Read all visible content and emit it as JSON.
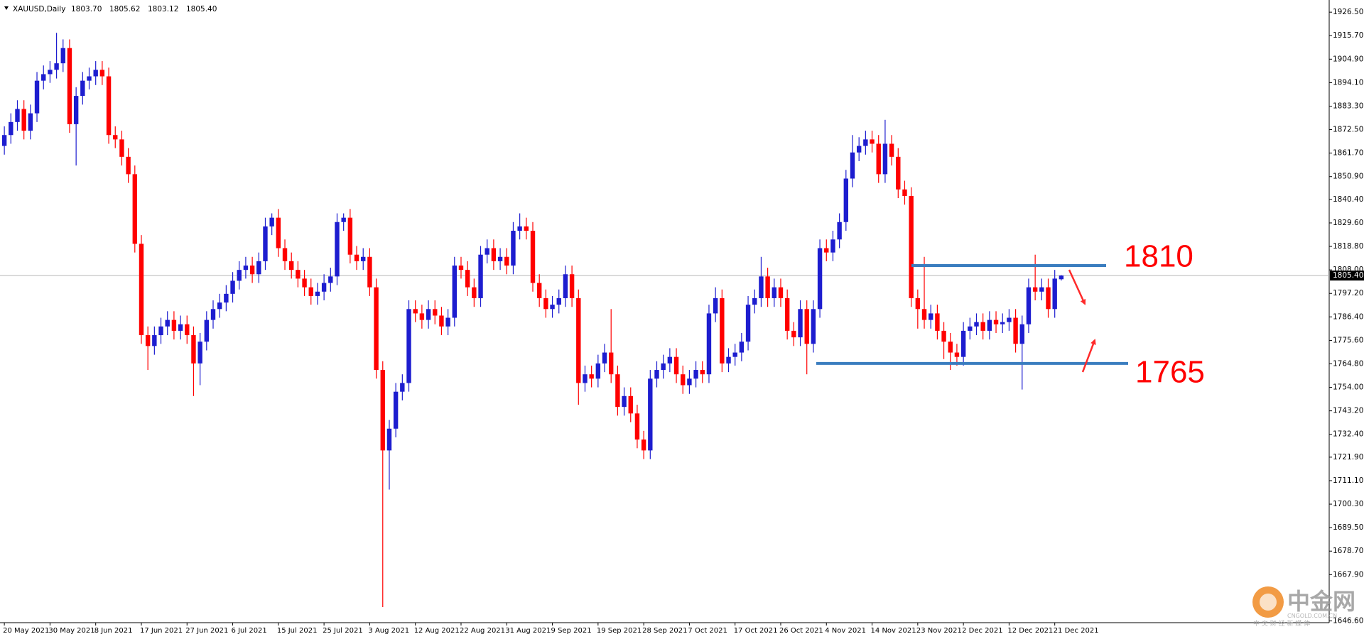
{
  "chart_data": {
    "type": "candlestick",
    "title": "XAUUSD,Daily",
    "header_prices": [
      {
        "value": 1803.7,
        "label": "1803.70"
      },
      {
        "value": 1805.62,
        "label": "1805.62"
      },
      {
        "value": 1803.12,
        "label": "1803.12"
      },
      {
        "value": 1805.4,
        "label": "1805.40"
      }
    ],
    "categories": [
      "20 May 2021",
      null,
      null,
      null,
      null,
      null,
      null,
      "30 May 2021",
      null,
      null,
      null,
      null,
      null,
      null,
      "8 Jun 2021",
      null,
      null,
      null,
      null,
      null,
      null,
      "17 Jun 2021",
      null,
      null,
      null,
      null,
      null,
      null,
      "27 Jun 2021",
      null,
      null,
      null,
      null,
      null,
      null,
      "6 Jul 2021",
      null,
      null,
      null,
      null,
      null,
      null,
      "15 Jul 2021",
      null,
      null,
      null,
      null,
      null,
      null,
      "25 Jul 2021",
      null,
      null,
      null,
      null,
      null,
      null,
      "3 Aug 2021",
      null,
      null,
      null,
      null,
      null,
      null,
      "12 Aug 2021",
      null,
      null,
      null,
      null,
      null,
      null,
      "22 Aug 2021",
      null,
      null,
      null,
      null,
      null,
      null,
      "31 Aug 2021",
      null,
      null,
      null,
      null,
      null,
      null,
      "9 Sep 2021",
      null,
      null,
      null,
      null,
      null,
      null,
      "19 Sep 2021",
      null,
      null,
      null,
      null,
      null,
      null,
      "28 Sep 2021",
      null,
      null,
      null,
      null,
      null,
      null,
      "7 Oct 2021",
      null,
      null,
      null,
      null,
      null,
      null,
      "17 Oct 2021",
      null,
      null,
      null,
      null,
      null,
      null,
      "26 Oct 2021",
      null,
      null,
      null,
      null,
      null,
      null,
      "4 Nov 2021",
      null,
      null,
      null,
      null,
      null,
      null,
      "14 Nov 2021",
      null,
      null,
      null,
      null,
      null,
      null,
      "23 Nov 2021",
      null,
      null,
      null,
      null,
      null,
      null,
      "2 Dec 2021",
      null,
      null,
      null,
      null,
      null,
      null,
      "12 Dec 2021",
      null,
      null,
      null,
      null,
      null,
      null,
      "21 Dec 2021",
      null
    ],
    "open": [
      1865,
      1870,
      1876,
      1882,
      1872,
      1880,
      1895,
      1898,
      1900,
      1903,
      1910,
      1875,
      1888,
      1895,
      1897,
      1900,
      1897,
      1870,
      1868,
      1860,
      1852,
      1820,
      1778,
      1773,
      1778,
      1782,
      1785,
      1780,
      1783,
      1778,
      1765,
      1775,
      1785,
      1790,
      1793,
      1797,
      1803,
      1808,
      1810,
      1806,
      1812,
      1828,
      1832,
      1818,
      1812,
      1808,
      1804,
      1800,
      1796,
      1798,
      1802,
      1805,
      1830,
      1832,
      1815,
      1812,
      1814,
      1800,
      1762,
      1725,
      1735,
      1752,
      1756,
      1790,
      1788,
      1785,
      1790,
      1787,
      1782,
      1786,
      1810,
      1808,
      1800,
      1795,
      1815,
      1818,
      1812,
      1814,
      1810,
      1826,
      1828,
      1826,
      1802,
      1795,
      1790,
      1792,
      1795,
      1806,
      1795,
      1756,
      1760,
      1758,
      1765,
      1770,
      1760,
      1745,
      1750,
      1742,
      1730,
      1725,
      1758,
      1762,
      1765,
      1768,
      1760,
      1755,
      1758,
      1762,
      1760,
      1788,
      1795,
      1765,
      1768,
      1770,
      1775,
      1792,
      1795,
      1805,
      1795,
      1800,
      1795,
      1780,
      1777,
      1790,
      1774,
      1790,
      1818,
      1816,
      1822,
      1830,
      1850,
      1862,
      1865,
      1868,
      1866,
      1852,
      1866,
      1860,
      1845,
      1842,
      1795,
      1790,
      1785,
      1788,
      1780,
      1775,
      1770,
      1768,
      1780,
      1782,
      1784,
      1780,
      1785,
      1783,
      1784,
      1786,
      1774,
      1783,
      1800,
      1798,
      1800,
      1790,
      1803.7
    ],
    "high": [
      1874,
      1880,
      1886,
      1886,
      1884,
      1899,
      1902,
      1904,
      1917,
      1914,
      1914,
      1892,
      1899,
      1901,
      1904,
      1904,
      1901,
      1874,
      1872,
      1864,
      1856,
      1824,
      1782,
      1782,
      1786,
      1789,
      1789,
      1787,
      1787,
      1782,
      1779,
      1789,
      1794,
      1797,
      1801,
      1807,
      1812,
      1814,
      1814,
      1816,
      1832,
      1834,
      1836,
      1822,
      1816,
      1812,
      1808,
      1804,
      1802,
      1806,
      1809,
      1834,
      1834,
      1836,
      1819,
      1818,
      1818,
      1804,
      1766,
      1739,
      1756,
      1760,
      1794,
      1794,
      1792,
      1794,
      1794,
      1791,
      1790,
      1814,
      1814,
      1812,
      1804,
      1819,
      1822,
      1822,
      1818,
      1818,
      1830,
      1834,
      1832,
      1830,
      1806,
      1799,
      1796,
      1799,
      1810,
      1810,
      1799,
      1764,
      1764,
      1769,
      1774,
      1790,
      1764,
      1754,
      1754,
      1746,
      1734,
      1762,
      1766,
      1769,
      1772,
      1772,
      1764,
      1762,
      1766,
      1766,
      1792,
      1800,
      1799,
      1772,
      1774,
      1779,
      1796,
      1799,
      1814,
      1809,
      1804,
      1804,
      1799,
      1784,
      1794,
      1794,
      1794,
      1822,
      1822,
      1826,
      1834,
      1854,
      1870,
      1869,
      1872,
      1872,
      1870,
      1877,
      1870,
      1864,
      1849,
      1846,
      1799,
      1814,
      1792,
      1792,
      1784,
      1779,
      1774,
      1784,
      1786,
      1788,
      1788,
      1789,
      1789,
      1788,
      1790,
      1790,
      1787,
      1804,
      1815,
      1804,
      1804,
      1808,
      1805.62
    ],
    "low": [
      1861,
      1866,
      1872,
      1868,
      1868,
      1876,
      1891,
      1894,
      1896,
      1899,
      1871,
      1856,
      1884,
      1891,
      1893,
      1893,
      1866,
      1864,
      1856,
      1848,
      1816,
      1774,
      1762,
      1769,
      1774,
      1778,
      1776,
      1776,
      1774,
      1750,
      1755,
      1771,
      1781,
      1786,
      1789,
      1793,
      1799,
      1804,
      1802,
      1802,
      1808,
      1824,
      1814,
      1808,
      1804,
      1800,
      1796,
      1792,
      1792,
      1794,
      1798,
      1801,
      1826,
      1811,
      1808,
      1808,
      1796,
      1758,
      1653,
      1707,
      1731,
      1748,
      1752,
      1784,
      1781,
      1781,
      1783,
      1778,
      1778,
      1782,
      1804,
      1796,
      1791,
      1791,
      1811,
      1808,
      1808,
      1806,
      1806,
      1822,
      1822,
      1798,
      1791,
      1786,
      1786,
      1788,
      1791,
      1791,
      1746,
      1752,
      1754,
      1754,
      1761,
      1756,
      1741,
      1741,
      1738,
      1726,
      1721,
      1721,
      1754,
      1758,
      1761,
      1756,
      1751,
      1751,
      1754,
      1756,
      1756,
      1784,
      1761,
      1761,
      1764,
      1766,
      1771,
      1788,
      1791,
      1791,
      1791,
      1791,
      1776,
      1773,
      1773,
      1760,
      1770,
      1786,
      1812,
      1812,
      1818,
      1826,
      1846,
      1858,
      1861,
      1862,
      1848,
      1848,
      1856,
      1841,
      1838,
      1791,
      1781,
      1781,
      1781,
      1776,
      1767,
      1762,
      1764,
      1764,
      1776,
      1778,
      1776,
      1776,
      1779,
      1779,
      1780,
      1770,
      1753,
      1779,
      1794,
      1794,
      1786,
      1786,
      1803.12
    ],
    "close": [
      1870,
      1876,
      1882,
      1872,
      1880,
      1895,
      1898,
      1900,
      1903,
      1910,
      1875,
      1888,
      1895,
      1897,
      1900,
      1897,
      1870,
      1868,
      1860,
      1852,
      1820,
      1778,
      1773,
      1778,
      1782,
      1785,
      1780,
      1783,
      1778,
      1765,
      1775,
      1785,
      1790,
      1793,
      1797,
      1803,
      1808,
      1810,
      1806,
      1812,
      1828,
      1832,
      1818,
      1812,
      1808,
      1804,
      1800,
      1796,
      1798,
      1802,
      1805,
      1830,
      1832,
      1815,
      1812,
      1814,
      1800,
      1762,
      1725,
      1735,
      1752,
      1756,
      1790,
      1788,
      1785,
      1790,
      1787,
      1782,
      1786,
      1810,
      1808,
      1800,
      1795,
      1815,
      1818,
      1812,
      1814,
      1810,
      1826,
      1828,
      1826,
      1802,
      1795,
      1790,
      1792,
      1795,
      1806,
      1795,
      1756,
      1760,
      1758,
      1765,
      1770,
      1760,
      1745,
      1750,
      1742,
      1730,
      1725,
      1758,
      1762,
      1765,
      1768,
      1760,
      1755,
      1758,
      1762,
      1760,
      1788,
      1795,
      1765,
      1768,
      1770,
      1775,
      1792,
      1795,
      1805,
      1795,
      1800,
      1795,
      1780,
      1777,
      1790,
      1774,
      1790,
      1818,
      1816,
      1822,
      1830,
      1850,
      1862,
      1865,
      1868,
      1866,
      1852,
      1866,
      1860,
      1845,
      1842,
      1795,
      1790,
      1785,
      1788,
      1780,
      1775,
      1770,
      1768,
      1780,
      1782,
      1784,
      1780,
      1785,
      1783,
      1784,
      1786,
      1774,
      1783,
      1800,
      1798,
      1800,
      1790,
      1804,
      1805.4
    ],
    "up_color": "#1d1dcf",
    "down_color": "#ff0000",
    "ylim": [
      1645.8,
      1932.1
    ],
    "yticks": [
      {
        "value": 1926.5,
        "label": "1926.50"
      },
      {
        "value": 1915.7,
        "label": "1915.70"
      },
      {
        "value": 1904.9,
        "label": "1904.90"
      },
      {
        "value": 1894.1,
        "label": "1894.10"
      },
      {
        "value": 1883.3,
        "label": "1883.30"
      },
      {
        "value": 1872.5,
        "label": "1872.50"
      },
      {
        "value": 1861.7,
        "label": "1861.70"
      },
      {
        "value": 1850.9,
        "label": "1850.90"
      },
      {
        "value": 1840.4,
        "label": "1840.40"
      },
      {
        "value": 1829.6,
        "label": "1829.60"
      },
      {
        "value": 1818.8,
        "label": "1818.80"
      },
      {
        "value": 1808,
        "label": "1808.00"
      },
      {
        "value": 1797.2,
        "label": "1797.20"
      },
      {
        "value": 1786.4,
        "label": "1786.40"
      },
      {
        "value": 1775.6,
        "label": "1775.60"
      },
      {
        "value": 1764.8,
        "label": "1764.80"
      },
      {
        "value": 1754,
        "label": "1754.00"
      },
      {
        "value": 1743.2,
        "label": "1743.20"
      },
      {
        "value": 1732.4,
        "label": "1732.40"
      },
      {
        "value": 1721.9,
        "label": "1721.90"
      },
      {
        "value": 1711.1,
        "label": "1711.10"
      },
      {
        "value": 1700.3,
        "label": "1700.30"
      },
      {
        "value": 1689.5,
        "label": "1689.50"
      },
      {
        "value": 1678.7,
        "label": "1678.70"
      },
      {
        "value": 1667.9,
        "label": "1667.90"
      },
      {
        "value": 1646.6,
        "label": "1646.60"
      }
    ],
    "current_price": {
      "value": 1805.4,
      "label": "1805.40"
    },
    "levels": [
      {
        "value": 1810,
        "label": "1810",
        "color": "#3a7dbf"
      },
      {
        "value": 1765,
        "label": "1765",
        "color": "#3a7dbf"
      }
    ]
  },
  "watermark": {
    "brand": "中金网",
    "site": "CNGOLD.COM.CN",
    "slogan": "中 文 财 经 新 媒 体"
  }
}
